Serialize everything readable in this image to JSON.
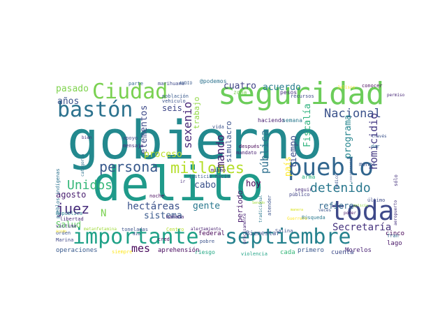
{
  "words": [
    {
      "text": "gobierno",
      "color": "#23898e"
    },
    {
      "text": "delito",
      "color": "#1f9a8a"
    },
    {
      "text": "seguridad",
      "color": "#6ccd5a"
    },
    {
      "text": "pueblo",
      "color": "#31668e"
    },
    {
      "text": "importante",
      "color": "#1fa187"
    },
    {
      "text": "septiembre",
      "color": "#26828e"
    },
    {
      "text": "toda",
      "color": "#3e4989"
    },
    {
      "text": "bastón",
      "color": "#2c728e"
    },
    {
      "text": "Ciudad",
      "color": "#7ad151"
    },
    {
      "text": "persona",
      "color": "#38598c"
    },
    {
      "text": "millones",
      "color": "#b5de2b"
    },
    {
      "text": "detenido",
      "color": "#2a788e"
    },
    {
      "text": "Nacional",
      "color": "#3b528b"
    },
    {
      "text": "juez",
      "color": "#472d7b"
    },
    {
      "text": "Unidos",
      "color": "#35b779"
    },
    {
      "text": "sexenio",
      "color": "#482878"
    },
    {
      "text": "hectáreas",
      "color": "#3b528b"
    },
    {
      "text": "mando",
      "color": "#481f70"
    },
    {
      "text": "homicidio",
      "color": "#443983"
    },
    {
      "text": "Secretaría",
      "color": "#46337e"
    },
    {
      "text": "pública",
      "color": "#2d708e"
    },
    {
      "text": "elementos",
      "color": "#3e4a89"
    },
    {
      "text": "programa",
      "color": "#25858e"
    },
    {
      "text": "Fiscalía",
      "color": "#2db27d"
    },
    {
      "text": "cuatro",
      "color": "#414487"
    },
    {
      "text": "acuerdo",
      "color": "#287d8e"
    },
    {
      "text": "pasado",
      "color": "#7fd34e"
    },
    {
      "text": "años",
      "color": "#3b528b"
    },
    {
      "text": "tiempo",
      "color": "#3e4c8a"
    },
    {
      "text": "país",
      "color": "#fde725"
    },
    {
      "text": "agosto",
      "color": "#481d6f"
    },
    {
      "text": "refiere",
      "color": "#31688e"
    },
    {
      "text": "gente",
      "color": "#2a788e"
    },
    {
      "text": "cabo",
      "color": "#3b528b"
    },
    {
      "text": "Salud",
      "color": "#5ec962"
    },
    {
      "text": "sistema",
      "color": "#38598c"
    },
    {
      "text": "proceso",
      "color": "#bddf26"
    },
    {
      "text": "mes",
      "color": "#46075a"
    },
    {
      "text": "periodo",
      "color": "#481b6d"
    },
    {
      "text": "hoy",
      "color": "#440154"
    },
    {
      "text": "seis",
      "color": "#3f4788"
    },
    {
      "text": "simulacro",
      "color": "#3b528b"
    },
    {
      "text": "trabajo",
      "color": "#90d743"
    },
    {
      "text": "N",
      "color": "#7ad151"
    },
    {
      "text": "lago",
      "color": "#481668"
    },
    {
      "text": "federal",
      "color": "#440154"
    },
    {
      "text": "operaciones",
      "color": "#38598c"
    },
    {
      "text": "aprehensión",
      "color": "#46085c"
    },
    {
      "text": "Bienestar",
      "color": "#3b528b"
    },
    {
      "text": "cinco",
      "color": "#440154"
    },
    {
      "text": "Morelos",
      "color": "#482173"
    },
    {
      "text": "cuenta",
      "color": "#3e4a89"
    },
    {
      "text": "cada",
      "color": "#35b779"
    },
    {
      "text": "primero",
      "color": "#39568c"
    },
    {
      "text": "fuego",
      "color": "#5ec962"
    },
    {
      "text": "riesgo",
      "color": "#22a884"
    },
    {
      "text": "violencia",
      "color": "#20a386"
    },
    {
      "text": "Marina",
      "color": "#3f4788"
    },
    {
      "text": "orden",
      "color": "#3b528b"
    },
    {
      "text": "víctima",
      "color": "#46327e"
    },
    {
      "text": "libertad",
      "color": "#482777"
    },
    {
      "text": "República",
      "color": "#287d8e"
    },
    {
      "text": "pueblos indígenas",
      "color": "#2c728e"
    },
    {
      "text": "zona",
      "color": "#7ad151"
    },
    {
      "text": "pesos",
      "color": "#472d7b"
    },
    {
      "text": "recursos",
      "color": "#3e4a89"
    },
    {
      "text": "población",
      "color": "#38598c"
    },
    {
      "text": "vehículo",
      "color": "#3b528b"
    },
    {
      "text": "haciendo",
      "color": "#481f70"
    },
    {
      "text": "semana",
      "color": "#2a788e"
    },
    {
      "text": "@podemos",
      "color": "#2c728e"
    },
    {
      "text": "parte",
      "color": "#31688e"
    },
    {
      "text": "marihuana",
      "color": "#3e4989"
    },
    {
      "text": "AUDIO",
      "color": "#38598c"
    },
    {
      "text": "conocer",
      "color": "#46075a"
    },
    {
      "text": "Jalisco",
      "color": "#fde725"
    },
    {
      "text": "permiso",
      "color": "#482878"
    },
    {
      "text": "través",
      "color": "#3b528b"
    },
    {
      "text": "sólo",
      "color": "#46337e"
    },
    {
      "text": "dar",
      "color": "#2d708e"
    },
    {
      "text": "menos",
      "color": "#39568c"
    },
    {
      "text": "último",
      "color": "#3e4a89"
    },
    {
      "text": "seguir",
      "color": "#472d7b"
    },
    {
      "text": "público",
      "color": "#414487"
    },
    {
      "text": "atender",
      "color": "#3b528b"
    },
    {
      "text": "arma",
      "color": "#2db27d"
    },
    {
      "text": "poder",
      "color": "#481668"
    },
    {
      "text": "Salina",
      "color": "#3b528b"
    },
    {
      "text": "Búsqueda",
      "color": "#2a788e"
    },
    {
      "text": "Tran",
      "color": "#31688e"
    },
    {
      "text": "después",
      "color": "#440154"
    },
    {
      "text": "mandato",
      "color": "#482173"
    },
    {
      "text": "vida",
      "color": "#3b528b"
    },
    {
      "text": "justicia",
      "color": "#38598c"
    },
    {
      "text": "hacia",
      "color": "#3e4a89"
    },
    {
      "text": "mismo",
      "color": "#481b6d"
    },
    {
      "text": "pobre",
      "color": "#3b528b"
    },
    {
      "text": "noche",
      "color": "#46085c"
    },
    {
      "text": "mañana",
      "color": "#482878"
    },
    {
      "text": "apoyo",
      "color": "#3e4989"
    },
    {
      "text": "mensaje",
      "color": "#472d7b"
    },
    {
      "text": "categoría",
      "color": "#2c728e"
    },
    {
      "text": "bien",
      "color": "#46337e"
    },
    {
      "text": "toneladas",
      "color": "#3b528b"
    },
    {
      "text": "metanfetamina",
      "color": "#9fda3a"
    },
    {
      "text": "alertamiento",
      "color": "#481f70"
    },
    {
      "text": "Centro",
      "color": "#b5de2b"
    },
    {
      "text": "cred",
      "color": "#440154"
    },
    {
      "text": "siempre",
      "color": "#fde725"
    },
    {
      "text": "medico",
      "color": "#3b528b"
    },
    {
      "text": "coordinación",
      "color": "#38598c"
    },
    {
      "text": "ácido",
      "color": "#fde725"
    },
    {
      "text": "dio",
      "color": "#3e4a89"
    },
    {
      "text": "ir",
      "color": "#472d7b"
    },
    {
      "text": "tradicional",
      "color": "#2a788e"
    },
    {
      "text": "precisamente",
      "color": "#482878"
    },
    {
      "text": "veces",
      "color": "#3b528b"
    },
    {
      "text": "Guerrero",
      "color": "#fde725"
    },
    {
      "text": "aeropuerto",
      "color": "#46337e"
    },
    {
      "text": "Senado",
      "color": "#9fda3a"
    },
    {
      "text": "manera",
      "color": "#d8e219"
    },
    {
      "text": "policía",
      "color": "#8fd744"
    }
  ]
}
